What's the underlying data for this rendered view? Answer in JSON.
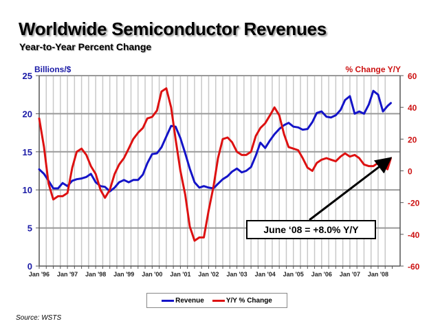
{
  "chart_data": {
    "type": "line",
    "title": "Worldwide Semiconductor Revenues",
    "subtitle": "Year-to-Year Percent Change",
    "ylabel_left": "Billions/$",
    "ylabel_right": "% Change Y/Y",
    "ylim_left": [
      0,
      25
    ],
    "ylim_right": [
      -60,
      60
    ],
    "yticks_left": [
      "0",
      "5",
      "10",
      "15",
      "20",
      "25"
    ],
    "yticks_right": [
      "-60",
      "-40",
      "-20",
      "0",
      "20",
      "40",
      "60"
    ],
    "xlim": [
      1996.0,
      2008.5
    ],
    "xticks": [
      "Jan '96",
      "Jan '97",
      "Jan '98",
      "Jan '99",
      "Jan '00",
      "Jan '01",
      "Jan '02",
      "Jan '03",
      "Jan '04",
      "Jan '05",
      "Jan '06",
      "Jan '07",
      "Jan '08"
    ],
    "grid": "horizontal major + vertical monthly-quarter",
    "legend_position": "bottom-center",
    "series": [
      {
        "name": "Revenue",
        "axis": "left",
        "color": "#1414c8",
        "x": [
          1996.0,
          1996.17,
          1996.33,
          1996.5,
          1996.67,
          1996.83,
          1997.0,
          1997.17,
          1997.33,
          1997.5,
          1997.67,
          1997.83,
          1998.0,
          1998.17,
          1998.33,
          1998.5,
          1998.67,
          1998.83,
          1999.0,
          1999.17,
          1999.33,
          1999.5,
          1999.67,
          1999.83,
          2000.0,
          2000.17,
          2000.33,
          2000.5,
          2000.67,
          2000.83,
          2001.0,
          2001.17,
          2001.33,
          2001.5,
          2001.67,
          2001.83,
          2002.0,
          2002.17,
          2002.33,
          2002.5,
          2002.67,
          2002.83,
          2003.0,
          2003.17,
          2003.33,
          2003.5,
          2003.67,
          2003.83,
          2004.0,
          2004.17,
          2004.33,
          2004.5,
          2004.67,
          2004.83,
          2005.0,
          2005.17,
          2005.33,
          2005.5,
          2005.67,
          2005.83,
          2006.0,
          2006.17,
          2006.33,
          2006.5,
          2006.67,
          2006.83,
          2007.0,
          2007.17,
          2007.33,
          2007.5,
          2007.67,
          2007.83,
          2008.0,
          2008.17,
          2008.33,
          2008.45
        ],
        "values": [
          12.7,
          12.1,
          11.2,
          10.2,
          10.2,
          10.9,
          10.5,
          11.2,
          11.4,
          11.5,
          11.7,
          12.1,
          11.0,
          10.5,
          10.4,
          9.8,
          10.3,
          11.0,
          11.3,
          11.0,
          11.3,
          11.3,
          12.0,
          13.5,
          14.7,
          14.8,
          15.6,
          17.0,
          18.4,
          18.3,
          16.8,
          14.8,
          12.8,
          11.0,
          10.3,
          10.5,
          10.3,
          10.2,
          10.8,
          11.4,
          11.8,
          12.4,
          12.8,
          12.3,
          12.5,
          13.0,
          14.5,
          16.2,
          15.5,
          16.5,
          17.3,
          18.0,
          18.5,
          18.8,
          18.3,
          18.2,
          17.9,
          18.0,
          18.9,
          20.1,
          20.3,
          19.6,
          19.5,
          19.8,
          20.5,
          21.8,
          22.3,
          20.0,
          20.3,
          20.0,
          21.2,
          23.0,
          22.5,
          20.3,
          21.0,
          21.4
        ]
      },
      {
        "name": "Y/Y % Change",
        "axis": "right",
        "color": "#dd1111",
        "x": [
          1996.0,
          1996.17,
          1996.33,
          1996.5,
          1996.67,
          1996.83,
          1997.0,
          1997.17,
          1997.33,
          1997.5,
          1997.67,
          1997.83,
          1998.0,
          1998.17,
          1998.33,
          1998.5,
          1998.67,
          1998.83,
          1999.0,
          1999.17,
          1999.33,
          1999.5,
          1999.67,
          1999.83,
          2000.0,
          2000.17,
          2000.33,
          2000.5,
          2000.67,
          2000.83,
          2001.0,
          2001.17,
          2001.33,
          2001.5,
          2001.67,
          2001.83,
          2002.0,
          2002.17,
          2002.33,
          2002.5,
          2002.67,
          2002.83,
          2003.0,
          2003.17,
          2003.33,
          2003.5,
          2003.67,
          2003.83,
          2004.0,
          2004.17,
          2004.33,
          2004.5,
          2004.67,
          2004.83,
          2005.0,
          2005.17,
          2005.33,
          2005.5,
          2005.67,
          2005.83,
          2006.0,
          2006.17,
          2006.33,
          2006.5,
          2006.67,
          2006.83,
          2007.0,
          2007.17,
          2007.33,
          2007.5,
          2007.67,
          2007.83,
          2008.0,
          2008.17,
          2008.33,
          2008.45
        ],
        "values": [
          33,
          15,
          -8,
          -18,
          -16,
          -16,
          -14,
          2,
          12,
          14,
          10,
          3,
          -2,
          -12,
          -17,
          -12,
          -2,
          4,
          8,
          14,
          20,
          24,
          27,
          33,
          34,
          38,
          50,
          52,
          40,
          20,
          0,
          -15,
          -35,
          -44,
          -42,
          -42,
          -25,
          -10,
          8,
          20,
          21,
          18,
          12,
          10,
          10,
          12,
          22,
          27,
          30,
          35,
          40,
          35,
          23,
          15,
          14,
          13,
          8,
          2,
          0,
          5,
          7,
          8,
          7,
          6,
          9,
          11,
          9,
          10,
          8,
          4,
          3,
          3,
          5,
          4,
          1,
          8
        ]
      }
    ],
    "annotation": {
      "text": "June ‘08 = +8.0% Y/Y",
      "points_to": {
        "x": 2008.45,
        "y": 8.0,
        "axis": "right"
      }
    },
    "source": "Source: WSTS"
  }
}
